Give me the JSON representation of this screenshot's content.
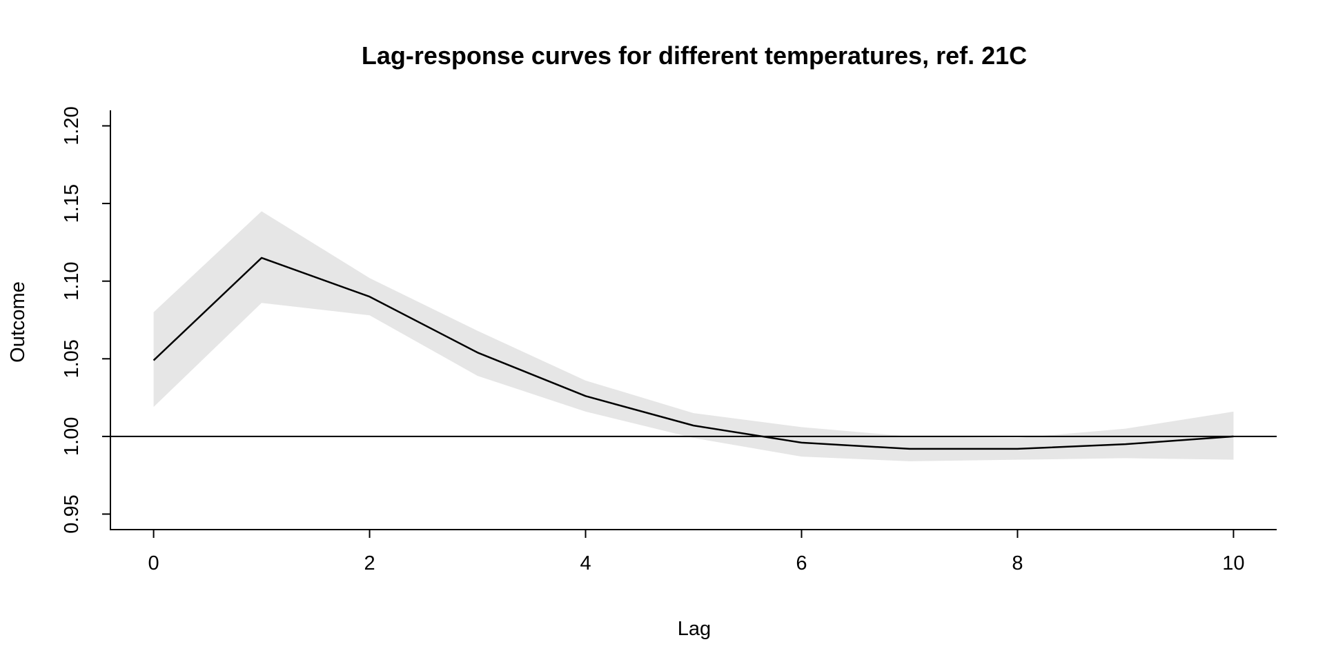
{
  "chart_data": {
    "type": "line",
    "title": "Lag-response curves for different temperatures, ref. 21C",
    "xlabel": "Lag",
    "ylabel": "Outcome",
    "xlim": [
      -0.4,
      10.4
    ],
    "ylim": [
      0.94,
      1.21
    ],
    "xticks": [
      0,
      2,
      4,
      6,
      8,
      10
    ],
    "xtick_labels": [
      "0",
      "2",
      "4",
      "6",
      "8",
      "10"
    ],
    "yticks": [
      0.95,
      1.0,
      1.05,
      1.1,
      1.15,
      1.2
    ],
    "ytick_labels": [
      "0.95",
      "1.00",
      "1.05",
      "1.10",
      "1.15",
      "1.20"
    ],
    "reference_line": 1.0,
    "grid": false,
    "legend": "none",
    "colors": {
      "line": "#000000",
      "band": "#e6e6e6",
      "reference": "#000000"
    },
    "x": [
      0,
      1,
      2,
      3,
      4,
      5,
      6,
      7,
      8,
      9,
      10
    ],
    "series": [
      {
        "values": [
          1.049,
          1.115,
          1.09,
          1.054,
          1.026,
          1.007,
          0.996,
          0.992,
          0.992,
          0.995,
          1.0
        ],
        "lower": [
          1.019,
          1.086,
          1.078,
          1.039,
          1.016,
          0.999,
          0.987,
          0.984,
          0.985,
          0.986,
          0.985
        ],
        "upper": [
          1.08,
          1.145,
          1.102,
          1.068,
          1.036,
          1.015,
          1.006,
          1.0,
          0.999,
          1.005,
          1.016
        ]
      }
    ]
  }
}
